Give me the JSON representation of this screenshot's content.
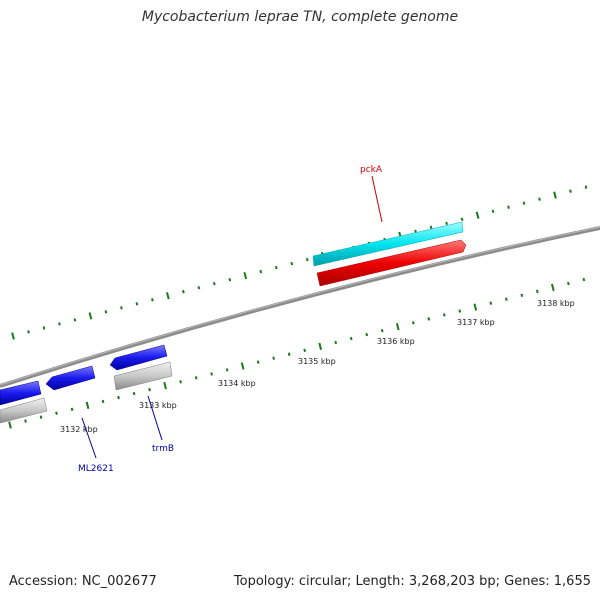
{
  "title": "Mycobacterium leprae TN, complete genome",
  "footer": {
    "accession": "Accession: NC_002677",
    "summary": "Topology: circular; Length: 3,268,203 bp; Genes: 1,655"
  },
  "ticks": {
    "labels": [
      "3132 kbp",
      "3133 kbp",
      "3134 kbp",
      "3135 kbp",
      "3136 kbp",
      "3137 kbp",
      "3138 kbp"
    ]
  },
  "genes": [
    {
      "id": "pckA",
      "label": "pckA",
      "label_color": "#cc0000",
      "strand": "forward",
      "cds_color": "#00e5ee",
      "gene_color": "#ee0000"
    },
    {
      "id": "trmB",
      "label": "trmB",
      "label_color": "#0000aa",
      "strand": "reverse",
      "cds_color": "#1a1aee",
      "gene_color": "#c8c8c8"
    },
    {
      "id": "ML2621",
      "label": "ML2621",
      "label_color": "#0000aa",
      "strand": "reverse",
      "cds_color": "#1a1aee",
      "gene_color": "#c8c8c8"
    }
  ],
  "colors": {
    "backbone": "#8c8c8c",
    "tick": "#1a7a1a"
  }
}
